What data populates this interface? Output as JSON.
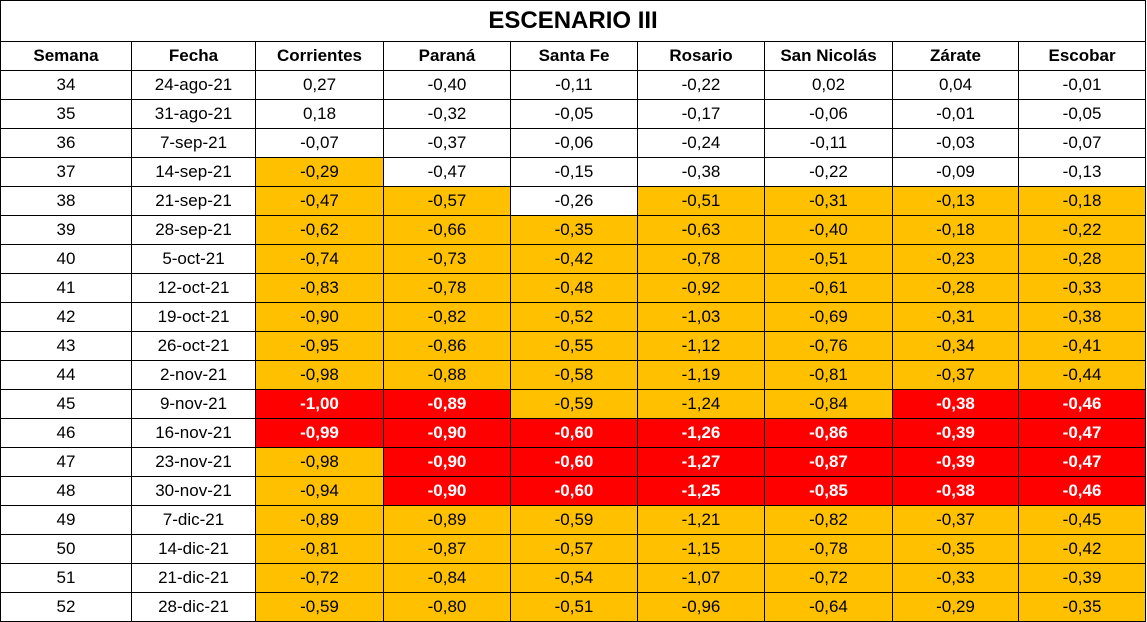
{
  "title": "ESCENARIO III",
  "headers": [
    "Semana",
    "Fecha",
    "Corrientes",
    "Paraná",
    "Santa Fe",
    "Rosario",
    "San Nicolás",
    "Zárate",
    "Escobar"
  ],
  "colors": {
    "orange": "#ffc000",
    "red": "#ff0000",
    "white": "#ffffff"
  },
  "rows": [
    {
      "semana": "34",
      "fecha": "24-ago-21",
      "values": [
        "0,27",
        "-0,40",
        "-0,11",
        "-0,22",
        "0,02",
        "0,04",
        "-0,01"
      ],
      "fills": [
        "w",
        "w",
        "w",
        "w",
        "w",
        "w",
        "w"
      ]
    },
    {
      "semana": "35",
      "fecha": "31-ago-21",
      "values": [
        "0,18",
        "-0,32",
        "-0,05",
        "-0,17",
        "-0,06",
        "-0,01",
        "-0,05"
      ],
      "fills": [
        "w",
        "w",
        "w",
        "w",
        "w",
        "w",
        "w"
      ]
    },
    {
      "semana": "36",
      "fecha": "7-sep-21",
      "values": [
        "-0,07",
        "-0,37",
        "-0,06",
        "-0,24",
        "-0,11",
        "-0,03",
        "-0,07"
      ],
      "fills": [
        "w",
        "w",
        "w",
        "w",
        "w",
        "w",
        "w"
      ]
    },
    {
      "semana": "37",
      "fecha": "14-sep-21",
      "values": [
        "-0,29",
        "-0,47",
        "-0,15",
        "-0,38",
        "-0,22",
        "-0,09",
        "-0,13"
      ],
      "fills": [
        "o",
        "w",
        "w",
        "w",
        "w",
        "w",
        "w"
      ]
    },
    {
      "semana": "38",
      "fecha": "21-sep-21",
      "values": [
        "-0,47",
        "-0,57",
        "-0,26",
        "-0,51",
        "-0,31",
        "-0,13",
        "-0,18"
      ],
      "fills": [
        "o",
        "o",
        "w",
        "o",
        "o",
        "o",
        "o"
      ]
    },
    {
      "semana": "39",
      "fecha": "28-sep-21",
      "values": [
        "-0,62",
        "-0,66",
        "-0,35",
        "-0,63",
        "-0,40",
        "-0,18",
        "-0,22"
      ],
      "fills": [
        "o",
        "o",
        "o",
        "o",
        "o",
        "o",
        "o"
      ]
    },
    {
      "semana": "40",
      "fecha": "5-oct-21",
      "values": [
        "-0,74",
        "-0,73",
        "-0,42",
        "-0,78",
        "-0,51",
        "-0,23",
        "-0,28"
      ],
      "fills": [
        "o",
        "o",
        "o",
        "o",
        "o",
        "o",
        "o"
      ]
    },
    {
      "semana": "41",
      "fecha": "12-oct-21",
      "values": [
        "-0,83",
        "-0,78",
        "-0,48",
        "-0,92",
        "-0,61",
        "-0,28",
        "-0,33"
      ],
      "fills": [
        "o",
        "o",
        "o",
        "o",
        "o",
        "o",
        "o"
      ]
    },
    {
      "semana": "42",
      "fecha": "19-oct-21",
      "values": [
        "-0,90",
        "-0,82",
        "-0,52",
        "-1,03",
        "-0,69",
        "-0,31",
        "-0,38"
      ],
      "fills": [
        "o",
        "o",
        "o",
        "o",
        "o",
        "o",
        "o"
      ]
    },
    {
      "semana": "43",
      "fecha": "26-oct-21",
      "values": [
        "-0,95",
        "-0,86",
        "-0,55",
        "-1,12",
        "-0,76",
        "-0,34",
        "-0,41"
      ],
      "fills": [
        "o",
        "o",
        "o",
        "o",
        "o",
        "o",
        "o"
      ]
    },
    {
      "semana": "44",
      "fecha": "2-nov-21",
      "values": [
        "-0,98",
        "-0,88",
        "-0,58",
        "-1,19",
        "-0,81",
        "-0,37",
        "-0,44"
      ],
      "fills": [
        "o",
        "o",
        "o",
        "o",
        "o",
        "o",
        "o"
      ]
    },
    {
      "semana": "45",
      "fecha": "9-nov-21",
      "values": [
        "-1,00",
        "-0,89",
        "-0,59",
        "-1,24",
        "-0,84",
        "-0,38",
        "-0,46"
      ],
      "fills": [
        "r",
        "r",
        "o",
        "o",
        "o",
        "r",
        "r"
      ]
    },
    {
      "semana": "46",
      "fecha": "16-nov-21",
      "values": [
        "-0,99",
        "-0,90",
        "-0,60",
        "-1,26",
        "-0,86",
        "-0,39",
        "-0,47"
      ],
      "fills": [
        "r",
        "r",
        "r",
        "r",
        "r",
        "r",
        "r"
      ]
    },
    {
      "semana": "47",
      "fecha": "23-nov-21",
      "values": [
        "-0,98",
        "-0,90",
        "-0,60",
        "-1,27",
        "-0,87",
        "-0,39",
        "-0,47"
      ],
      "fills": [
        "o",
        "r",
        "r",
        "r",
        "r",
        "r",
        "r"
      ]
    },
    {
      "semana": "48",
      "fecha": "30-nov-21",
      "values": [
        "-0,94",
        "-0,90",
        "-0,60",
        "-1,25",
        "-0,85",
        "-0,38",
        "-0,46"
      ],
      "fills": [
        "o",
        "r",
        "r",
        "r",
        "r",
        "r",
        "r"
      ]
    },
    {
      "semana": "49",
      "fecha": "7-dic-21",
      "values": [
        "-0,89",
        "-0,89",
        "-0,59",
        "-1,21",
        "-0,82",
        "-0,37",
        "-0,45"
      ],
      "fills": [
        "o",
        "o",
        "o",
        "o",
        "o",
        "o",
        "o"
      ]
    },
    {
      "semana": "50",
      "fecha": "14-dic-21",
      "values": [
        "-0,81",
        "-0,87",
        "-0,57",
        "-1,15",
        "-0,78",
        "-0,35",
        "-0,42"
      ],
      "fills": [
        "o",
        "o",
        "o",
        "o",
        "o",
        "o",
        "o"
      ]
    },
    {
      "semana": "51",
      "fecha": "21-dic-21",
      "values": [
        "-0,72",
        "-0,84",
        "-0,54",
        "-1,07",
        "-0,72",
        "-0,33",
        "-0,39"
      ],
      "fills": [
        "o",
        "o",
        "o",
        "o",
        "o",
        "o",
        "o"
      ]
    },
    {
      "semana": "52",
      "fecha": "28-dic-21",
      "values": [
        "-0,59",
        "-0,80",
        "-0,51",
        "-0,96",
        "-0,64",
        "-0,29",
        "-0,35"
      ],
      "fills": [
        "o",
        "o",
        "o",
        "o",
        "o",
        "o",
        "o"
      ]
    }
  ]
}
